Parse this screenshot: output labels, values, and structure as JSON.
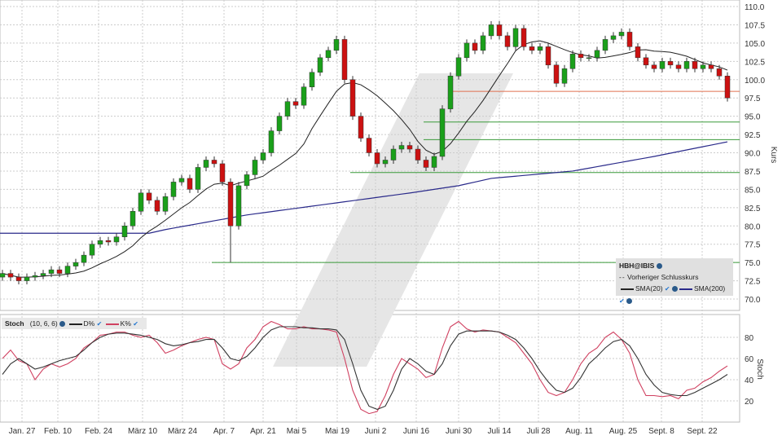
{
  "chart_data": [
    {
      "type": "candlestick",
      "ylabel": "Kurs",
      "ylim": [
        68,
        111
      ],
      "yticks": [
        "110.0",
        "107.5",
        "105.0",
        "102.5",
        "100.0",
        "97.5",
        "95.0",
        "92.5",
        "90.0",
        "87.5",
        "85.0",
        "82.5",
        "80.0",
        "77.5",
        "75.0",
        "72.5",
        "70.0"
      ],
      "xticks": [
        "Jan. 27",
        "Feb. 10",
        "Feb. 24",
        "März 10",
        "März 24",
        "Apr. 7",
        "Apr. 21",
        "Mai 5",
        "Mai 19",
        "Juni 2",
        "Juni 16",
        "Juni 30",
        "Juli 14",
        "Juli 28",
        "Aug. 11",
        "Aug. 25",
        "Sept. 8",
        "Sept. 22"
      ],
      "close": [
        73.5,
        73,
        72.5,
        73,
        73.2,
        73.5,
        74,
        73.5,
        74.5,
        75,
        76,
        77.5,
        78,
        77.8,
        78.5,
        80,
        82,
        84.5,
        83.5,
        82,
        84,
        86,
        86.5,
        85,
        88,
        89,
        88.5,
        86,
        80,
        85.5,
        87,
        89,
        90,
        93,
        95,
        97,
        96.5,
        99,
        101,
        103,
        104,
        105.5,
        100,
        95,
        92,
        90,
        88.5,
        89,
        90.5,
        91,
        90.5,
        89,
        88,
        89.5,
        96,
        100.5,
        103,
        105,
        104,
        106,
        107.5,
        106,
        104.5,
        107,
        104.5,
        104,
        104.5,
        102,
        99.5,
        101.5,
        103.5,
        103,
        103,
        104,
        105.5,
        106,
        106.5,
        104.5,
        103,
        102,
        101.5,
        102.5,
        102,
        101.5,
        102.5,
        101.5,
        102,
        101.5,
        100.5,
        97.5
      ],
      "first_open": 73,
      "sma200": [
        [
          0,
          79
        ],
        [
          18,
          79
        ],
        [
          20,
          79.5
        ],
        [
          30,
          81.5
        ],
        [
          40,
          83
        ],
        [
          50,
          84.5
        ],
        [
          56,
          85.5
        ],
        [
          60,
          86.5
        ],
        [
          70,
          87.5
        ],
        [
          80,
          89.5
        ],
        [
          89,
          91.5
        ]
      ],
      "hlines": [
        {
          "value": 94.2,
          "from": 52,
          "color": "#3a9a3a"
        },
        {
          "value": 91.8,
          "from": 52,
          "color": "#3a9a3a"
        },
        {
          "value": 87.3,
          "from": 43,
          "color": "#3a9a3a"
        },
        {
          "value": 75,
          "from": 26,
          "color": "#3a9a3a"
        },
        {
          "value": 98.4,
          "from": 55,
          "color": "#e07050"
        }
      ],
      "legend": {
        "symbol": "HBH@IBIS",
        "prev_close": "Vorheriger Schlusskurs",
        "sma20": "SMA(20)",
        "sma200": "SMA(200)"
      },
      "colors": {
        "up": "#1aa01a",
        "down": "#cc1111",
        "sma20": "#222222",
        "sma200": "#2a2a8a"
      }
    },
    {
      "type": "line",
      "ylabel": "Stoch",
      "ylim": [
        0,
        100
      ],
      "yticks": [
        "80",
        "60",
        "40",
        "20"
      ],
      "legend": {
        "name": "Stoch",
        "params": "(10, 6, 6)",
        "d": "D%",
        "k": "K%"
      },
      "series": [
        {
          "name": "K%",
          "color": "#d04060",
          "values": [
            60,
            68,
            58,
            55,
            40,
            50,
            55,
            52,
            55,
            60,
            70,
            75,
            82,
            83,
            85,
            85,
            82,
            80,
            82,
            75,
            65,
            68,
            72,
            75,
            78,
            80,
            78,
            55,
            50,
            55,
            70,
            78,
            90,
            95,
            92,
            88,
            88,
            90,
            88,
            88,
            87,
            85,
            60,
            30,
            12,
            8,
            10,
            25,
            45,
            60,
            55,
            50,
            42,
            45,
            70,
            90,
            95,
            88,
            85,
            87,
            86,
            85,
            80,
            75,
            65,
            55,
            40,
            28,
            25,
            28,
            40,
            55,
            65,
            70,
            80,
            85,
            78,
            65,
            40,
            25,
            25,
            24,
            25,
            22,
            30,
            32,
            38,
            42,
            48,
            53
          ]
        },
        {
          "name": "D%",
          "color": "#333333",
          "values": [
            45,
            55,
            60,
            55,
            50,
            52,
            55,
            58,
            60,
            62,
            68,
            75,
            80,
            83,
            84,
            84,
            83,
            82,
            80,
            78,
            74,
            72,
            73,
            75,
            76,
            78,
            78,
            70,
            60,
            58,
            62,
            70,
            80,
            87,
            90,
            90,
            90,
            89,
            89,
            88,
            88,
            87,
            78,
            55,
            30,
            15,
            12,
            15,
            30,
            50,
            60,
            55,
            48,
            45,
            55,
            72,
            83,
            86,
            86,
            86,
            86,
            85,
            82,
            78,
            70,
            60,
            48,
            38,
            30,
            28,
            32,
            42,
            55,
            62,
            70,
            76,
            78,
            72,
            60,
            45,
            35,
            28,
            26,
            25,
            25,
            28,
            32,
            36,
            40,
            45
          ]
        }
      ]
    }
  ]
}
